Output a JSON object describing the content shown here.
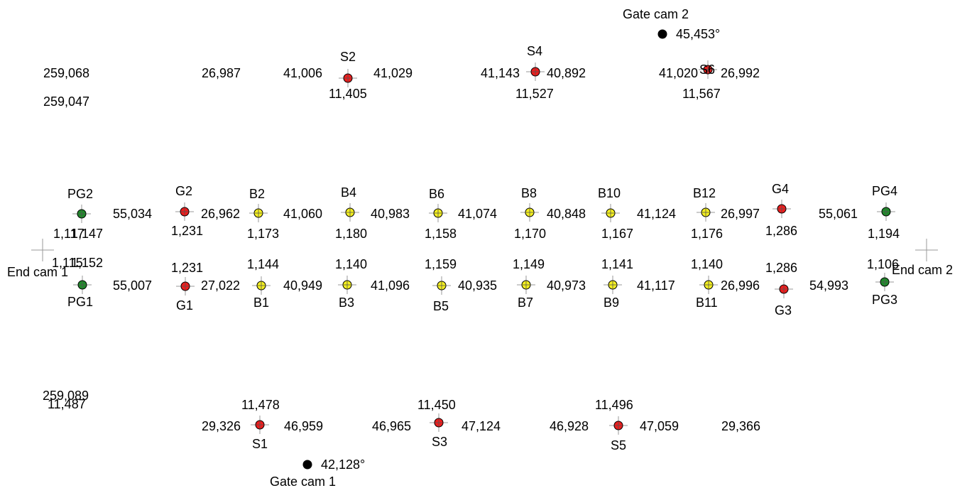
{
  "colors": {
    "red": "#ee1c1c",
    "yellow": "#f2ee1f",
    "green": "#1e8a2a",
    "black": "#000000",
    "cross": "#9a9a9a"
  },
  "markers": [
    {
      "id": "S2",
      "color": "red"
    },
    {
      "id": "S4",
      "color": "red"
    },
    {
      "id": "S6",
      "color": "red"
    },
    {
      "id": "gatecam2",
      "color": "black"
    },
    {
      "id": "PG2",
      "color": "green"
    },
    {
      "id": "G2",
      "color": "red"
    },
    {
      "id": "B2",
      "color": "yellow"
    },
    {
      "id": "B4",
      "color": "yellow"
    },
    {
      "id": "B6",
      "color": "yellow"
    },
    {
      "id": "B8",
      "color": "yellow"
    },
    {
      "id": "B10",
      "color": "yellow"
    },
    {
      "id": "B12",
      "color": "yellow"
    },
    {
      "id": "G4",
      "color": "red"
    },
    {
      "id": "PG4",
      "color": "green"
    },
    {
      "id": "PG1",
      "color": "green"
    },
    {
      "id": "G1",
      "color": "red"
    },
    {
      "id": "B1",
      "color": "yellow"
    },
    {
      "id": "B3",
      "color": "yellow"
    },
    {
      "id": "B5",
      "color": "yellow"
    },
    {
      "id": "B7",
      "color": "yellow"
    },
    {
      "id": "B9",
      "color": "yellow"
    },
    {
      "id": "B11",
      "color": "yellow"
    },
    {
      "id": "G3",
      "color": "red"
    },
    {
      "id": "PG3",
      "color": "green"
    },
    {
      "id": "S1",
      "color": "red"
    },
    {
      "id": "S3",
      "color": "red"
    },
    {
      "id": "S5",
      "color": "red"
    },
    {
      "id": "gatecam1",
      "color": "black"
    }
  ],
  "crosses": [
    "endcam1",
    "endcam2"
  ],
  "labels": [
    {
      "id": "gate-cam-2-label",
      "text": "Gate cam 2"
    },
    {
      "id": "gate-cam-2-angle",
      "text": "45,453°"
    },
    {
      "id": "s2-label",
      "text": "S2"
    },
    {
      "id": "s4-label",
      "text": "S4"
    },
    {
      "id": "s6-label",
      "text": "S6"
    },
    {
      "id": "top-left-dist-a",
      "text": "259,068"
    },
    {
      "id": "top-left-dist-b",
      "text": "259,047"
    },
    {
      "id": "top-dist-1",
      "text": "26,987"
    },
    {
      "id": "top-dist-2",
      "text": "41,006"
    },
    {
      "id": "top-dist-3",
      "text": "41,029"
    },
    {
      "id": "top-dist-4",
      "text": "41,143"
    },
    {
      "id": "top-dist-5",
      "text": "40,892"
    },
    {
      "id": "top-dist-6",
      "text": "41,020"
    },
    {
      "id": "top-dist-7",
      "text": "26,992"
    },
    {
      "id": "s2-height",
      "text": "11,405"
    },
    {
      "id": "s4-height",
      "text": "11,527"
    },
    {
      "id": "s6-height",
      "text": "11,567"
    },
    {
      "id": "pg2-label",
      "text": "PG2"
    },
    {
      "id": "g2-label",
      "text": "G2"
    },
    {
      "id": "b2-label",
      "text": "B2"
    },
    {
      "id": "b4-label",
      "text": "B4"
    },
    {
      "id": "b6-label",
      "text": "B6"
    },
    {
      "id": "b8-label",
      "text": "B8"
    },
    {
      "id": "b10-label",
      "text": "B10"
    },
    {
      "id": "b12-label",
      "text": "B12"
    },
    {
      "id": "g4-label",
      "text": "G4"
    },
    {
      "id": "pg4-label",
      "text": "PG4"
    },
    {
      "id": "row2-dist-1",
      "text": "55,034"
    },
    {
      "id": "row2-dist-2",
      "text": "26,962"
    },
    {
      "id": "row2-dist-3",
      "text": "41,060"
    },
    {
      "id": "row2-dist-4",
      "text": "40,983"
    },
    {
      "id": "row2-dist-5",
      "text": "41,074"
    },
    {
      "id": "row2-dist-6",
      "text": "40,848"
    },
    {
      "id": "row2-dist-7",
      "text": "41,124"
    },
    {
      "id": "row2-dist-8",
      "text": "26,997"
    },
    {
      "id": "row2-dist-9",
      "text": "55,061"
    },
    {
      "id": "pg2-height-a",
      "text": "1,117"
    },
    {
      "id": "pg2-height-b",
      "text": "1,147"
    },
    {
      "id": "g2-height",
      "text": "1,231"
    },
    {
      "id": "b2-height",
      "text": "1,173"
    },
    {
      "id": "b4-height",
      "text": "1,180"
    },
    {
      "id": "b6-height",
      "text": "1,158"
    },
    {
      "id": "b8-height",
      "text": "1,170"
    },
    {
      "id": "b10-height",
      "text": "1,167"
    },
    {
      "id": "b12-height",
      "text": "1,176"
    },
    {
      "id": "g4-height",
      "text": "1,286"
    },
    {
      "id": "pg4-height",
      "text": "1,194"
    },
    {
      "id": "end-cam-1-label",
      "text": "End cam 1"
    },
    {
      "id": "end-cam-2-label",
      "text": "End cam 2"
    },
    {
      "id": "pg1-height-a",
      "text": "1,115"
    },
    {
      "id": "pg1-height-b",
      "text": "1,152"
    },
    {
      "id": "g1-height",
      "text": "1,231"
    },
    {
      "id": "b1-height",
      "text": "1,144"
    },
    {
      "id": "b3-height",
      "text": "1,140"
    },
    {
      "id": "b5-height",
      "text": "1,159"
    },
    {
      "id": "b7-height",
      "text": "1,149"
    },
    {
      "id": "b9-height",
      "text": "1,141"
    },
    {
      "id": "b11-height",
      "text": "1,140"
    },
    {
      "id": "g3-height",
      "text": "1,286"
    },
    {
      "id": "pg3-height",
      "text": "1,106"
    },
    {
      "id": "row3-dist-1",
      "text": "55,007"
    },
    {
      "id": "row3-dist-2",
      "text": "27,022"
    },
    {
      "id": "row3-dist-3",
      "text": "40,949"
    },
    {
      "id": "row3-dist-4",
      "text": "41,096"
    },
    {
      "id": "row3-dist-5",
      "text": "40,935"
    },
    {
      "id": "row3-dist-6",
      "text": "40,973"
    },
    {
      "id": "row3-dist-7",
      "text": "41,117"
    },
    {
      "id": "row3-dist-8",
      "text": "26,996"
    },
    {
      "id": "row3-dist-9",
      "text": "54,993"
    },
    {
      "id": "pg1-label",
      "text": "PG1"
    },
    {
      "id": "g1-label",
      "text": "G1"
    },
    {
      "id": "b1-label",
      "text": "B1"
    },
    {
      "id": "b3-label",
      "text": "B3"
    },
    {
      "id": "b5-label",
      "text": "B5"
    },
    {
      "id": "b7-label",
      "text": "B7"
    },
    {
      "id": "b9-label",
      "text": "B9"
    },
    {
      "id": "b11-label",
      "text": "B11"
    },
    {
      "id": "g3-label",
      "text": "G3"
    },
    {
      "id": "pg3-label",
      "text": "PG3"
    },
    {
      "id": "bottom-left-dist",
      "text": "259,089"
    },
    {
      "id": "bottom-left-height",
      "text": "11,487"
    },
    {
      "id": "s1-height",
      "text": "11,478"
    },
    {
      "id": "s3-height",
      "text": "11,450"
    },
    {
      "id": "s5-height",
      "text": "11,496"
    },
    {
      "id": "bottom-dist-1",
      "text": "29,326"
    },
    {
      "id": "bottom-dist-2",
      "text": "46,959"
    },
    {
      "id": "bottom-dist-3",
      "text": "46,965"
    },
    {
      "id": "bottom-dist-4",
      "text": "47,124"
    },
    {
      "id": "bottom-dist-5",
      "text": "46,928"
    },
    {
      "id": "bottom-dist-6",
      "text": "47,059"
    },
    {
      "id": "bottom-dist-7",
      "text": "29,366"
    },
    {
      "id": "s1-label",
      "text": "S1"
    },
    {
      "id": "s3-label",
      "text": "S3"
    },
    {
      "id": "s5-label",
      "text": "S5"
    },
    {
      "id": "gate-cam-1-angle",
      "text": "42,128°"
    },
    {
      "id": "gate-cam-1-label",
      "text": "Gate cam 1"
    }
  ]
}
